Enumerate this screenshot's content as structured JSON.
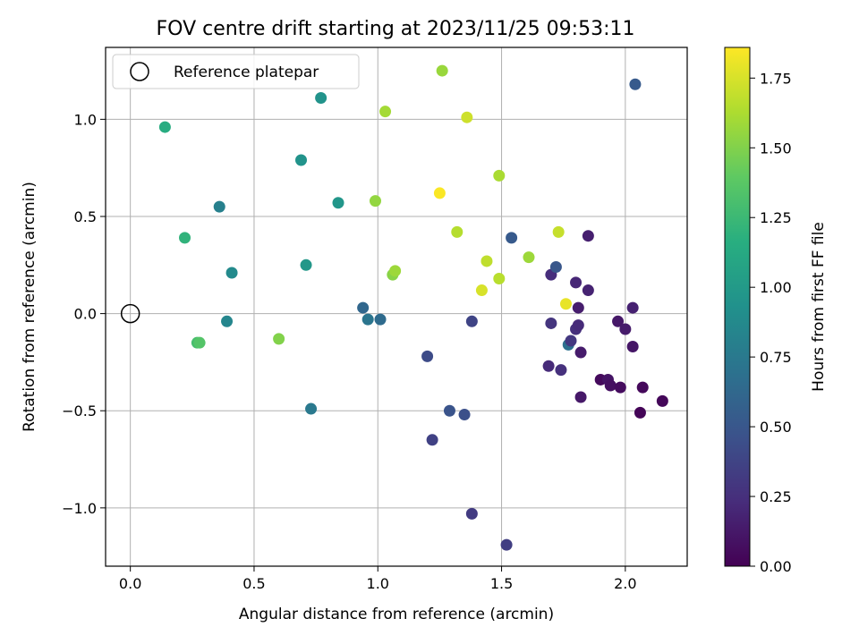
{
  "chart_data": {
    "type": "scatter",
    "title": "FOV centre drift starting at 2023/11/25 09:53:11",
    "xlabel": "Angular distance from reference (arcmin)",
    "ylabel": "Rotation from reference (arcmin)",
    "xlim": [
      -0.1,
      2.25
    ],
    "ylim": [
      -1.3,
      1.37
    ],
    "xticks": [
      0.0,
      0.5,
      1.0,
      1.5,
      2.0
    ],
    "xtick_labels": [
      "0.0",
      "0.5",
      "1.0",
      "1.5",
      "2.0"
    ],
    "yticks": [
      -1.0,
      -0.5,
      0.0,
      0.5,
      1.0
    ],
    "ytick_labels": [
      "−1.0",
      "−0.5",
      "0.0",
      "0.5",
      "1.0"
    ],
    "grid": true,
    "legend": {
      "position": "top-left",
      "entries": [
        "Reference platepar"
      ]
    },
    "reference_point": {
      "x": 0.0,
      "y": 0.0
    },
    "colorbar": {
      "label": "Hours from first FF file",
      "range": [
        0.0,
        1.86
      ],
      "ticks": [
        0.0,
        0.25,
        0.5,
        0.75,
        1.0,
        1.25,
        1.5,
        1.75
      ],
      "tick_labels": [
        "0.00",
        "0.25",
        "0.50",
        "0.75",
        "1.00",
        "1.25",
        "1.50",
        "1.75"
      ],
      "colormap": "viridis"
    },
    "points": [
      {
        "x": 0.14,
        "y": 0.96,
        "c": 1.15
      },
      {
        "x": 0.22,
        "y": 0.39,
        "c": 1.2
      },
      {
        "x": 0.27,
        "y": -0.15,
        "c": 1.3
      },
      {
        "x": 0.28,
        "y": -0.15,
        "c": 1.35
      },
      {
        "x": 0.36,
        "y": 0.55,
        "c": 0.8
      },
      {
        "x": 0.39,
        "y": -0.04,
        "c": 0.85
      },
      {
        "x": 0.41,
        "y": 0.21,
        "c": 0.88
      },
      {
        "x": 0.6,
        "y": -0.13,
        "c": 1.5
      },
      {
        "x": 0.69,
        "y": 0.79,
        "c": 0.95
      },
      {
        "x": 0.71,
        "y": 0.25,
        "c": 0.98
      },
      {
        "x": 0.73,
        "y": -0.49,
        "c": 0.75
      },
      {
        "x": 0.77,
        "y": 1.11,
        "c": 0.95
      },
      {
        "x": 0.84,
        "y": 0.57,
        "c": 0.97
      },
      {
        "x": 0.94,
        "y": 0.03,
        "c": 0.62
      },
      {
        "x": 0.96,
        "y": -0.03,
        "c": 0.72
      },
      {
        "x": 0.99,
        "y": 0.58,
        "c": 1.55
      },
      {
        "x": 1.01,
        "y": -0.03,
        "c": 0.65
      },
      {
        "x": 1.03,
        "y": 1.04,
        "c": 1.6
      },
      {
        "x": 1.06,
        "y": 0.2,
        "c": 1.52
      },
      {
        "x": 1.07,
        "y": 0.22,
        "c": 1.58
      },
      {
        "x": 1.2,
        "y": -0.22,
        "c": 0.42
      },
      {
        "x": 1.22,
        "y": -0.65,
        "c": 0.36
      },
      {
        "x": 1.25,
        "y": 0.62,
        "c": 1.85
      },
      {
        "x": 1.26,
        "y": 1.25,
        "c": 1.57
      },
      {
        "x": 1.29,
        "y": -0.5,
        "c": 0.48
      },
      {
        "x": 1.32,
        "y": 0.42,
        "c": 1.65
      },
      {
        "x": 1.35,
        "y": -0.52,
        "c": 0.45
      },
      {
        "x": 1.36,
        "y": 1.01,
        "c": 1.72
      },
      {
        "x": 1.38,
        "y": -0.04,
        "c": 0.38
      },
      {
        "x": 1.38,
        "y": -1.03,
        "c": 0.32
      },
      {
        "x": 1.42,
        "y": 0.12,
        "c": 1.75
      },
      {
        "x": 1.44,
        "y": 0.27,
        "c": 1.68
      },
      {
        "x": 1.49,
        "y": 0.71,
        "c": 1.62
      },
      {
        "x": 1.49,
        "y": 0.18,
        "c": 1.66
      },
      {
        "x": 1.52,
        "y": -1.19,
        "c": 0.34
      },
      {
        "x": 1.54,
        "y": 0.39,
        "c": 0.52
      },
      {
        "x": 1.61,
        "y": 0.29,
        "c": 1.58
      },
      {
        "x": 1.69,
        "y": -0.27,
        "c": 0.22
      },
      {
        "x": 1.7,
        "y": -0.05,
        "c": 0.28
      },
      {
        "x": 1.7,
        "y": 0.2,
        "c": 0.24
      },
      {
        "x": 1.72,
        "y": 0.24,
        "c": 0.5
      },
      {
        "x": 1.73,
        "y": 0.42,
        "c": 1.7
      },
      {
        "x": 1.74,
        "y": -0.29,
        "c": 0.26
      },
      {
        "x": 1.76,
        "y": 0.05,
        "c": 1.8
      },
      {
        "x": 1.77,
        "y": -0.16,
        "c": 0.68
      },
      {
        "x": 1.78,
        "y": -0.14,
        "c": 0.3
      },
      {
        "x": 1.8,
        "y": 0.16,
        "c": 0.2
      },
      {
        "x": 1.8,
        "y": -0.08,
        "c": 0.25
      },
      {
        "x": 1.81,
        "y": -0.06,
        "c": 0.22
      },
      {
        "x": 1.81,
        "y": 0.03,
        "c": 0.15
      },
      {
        "x": 1.82,
        "y": -0.43,
        "c": 0.12
      },
      {
        "x": 1.82,
        "y": -0.2,
        "c": 0.14
      },
      {
        "x": 1.85,
        "y": 0.12,
        "c": 0.18
      },
      {
        "x": 1.85,
        "y": 0.4,
        "c": 0.16
      },
      {
        "x": 1.9,
        "y": -0.34,
        "c": 0.05
      },
      {
        "x": 1.93,
        "y": -0.34,
        "c": 0.1
      },
      {
        "x": 1.94,
        "y": -0.37,
        "c": 0.08
      },
      {
        "x": 1.97,
        "y": -0.04,
        "c": 0.12
      },
      {
        "x": 1.98,
        "y": -0.38,
        "c": 0.06
      },
      {
        "x": 2.0,
        "y": -0.08,
        "c": 0.14
      },
      {
        "x": 2.03,
        "y": 0.03,
        "c": 0.17
      },
      {
        "x": 2.03,
        "y": -0.17,
        "c": 0.11
      },
      {
        "x": 2.04,
        "y": 1.18,
        "c": 0.52
      },
      {
        "x": 2.06,
        "y": -0.51,
        "c": 0.02
      },
      {
        "x": 2.07,
        "y": -0.38,
        "c": 0.04
      },
      {
        "x": 2.15,
        "y": -0.45,
        "c": 0.03
      }
    ]
  }
}
